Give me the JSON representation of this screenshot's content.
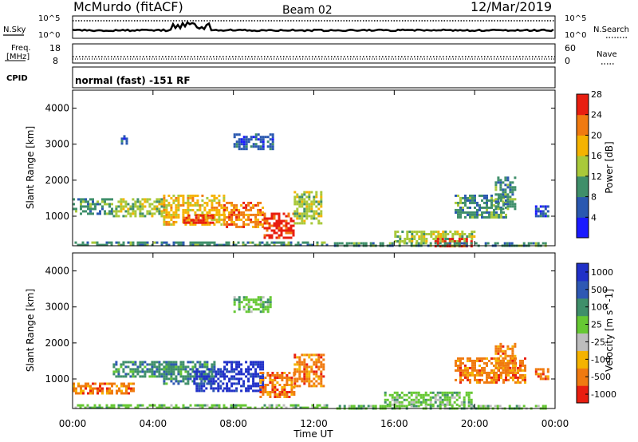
{
  "header": {
    "station": "McMurdo (fitACF)",
    "beam": "Beam 02",
    "date": "12/Mar/2019"
  },
  "top_panels": {
    "nsky_label": "N.Sky",
    "nsearch_label": "N.Search",
    "noise_ticks_left": [
      "10^5",
      "10^0"
    ],
    "noise_ticks_right": [
      "10^5",
      "10^0"
    ],
    "freq_label_line1": "Freq.",
    "freq_label_line2": "[MHz]",
    "freq_ticks": [
      "18",
      "8"
    ],
    "nave_label": "Nave",
    "nave_ticks": [
      "60",
      "0"
    ],
    "cpid_label": "CPID",
    "cpid_text": "normal (fast) -151 RF"
  },
  "chart_data": [
    {
      "type": "heatmap",
      "name": "power",
      "ylabel": "Slant Range [km]",
      "xlabel": "",
      "yticks": [
        "1000",
        "2000",
        "3000",
        "4000"
      ],
      "ylim": [
        180,
        4500
      ],
      "colorbar_label": "Power [dB]",
      "colorbar_ticks": [
        "4",
        "8",
        "12",
        "16",
        "20",
        "24",
        "28"
      ],
      "colors": [
        "#1a1aff",
        "#2a58b0",
        "#3f8f6a",
        "#a9c93a",
        "#f5b300",
        "#f07a10",
        "#e81e10"
      ],
      "regions": [
        {
          "t0": 0.1,
          "t1": 12.6,
          "r0": 180,
          "r1": 300,
          "level": 2
        },
        {
          "t0": 0.0,
          "t1": 2.0,
          "r0": 1100,
          "r1": 1500,
          "level": 2
        },
        {
          "t0": 2.0,
          "t1": 4.5,
          "r0": 1000,
          "r1": 1500,
          "level": 3
        },
        {
          "t0": 4.5,
          "t1": 7.5,
          "r0": 800,
          "r1": 1600,
          "level": 4
        },
        {
          "t0": 5.5,
          "t1": 7.0,
          "r0": 800,
          "r1": 1050,
          "level": 6
        },
        {
          "t0": 7.5,
          "t1": 9.5,
          "r0": 700,
          "r1": 1400,
          "level": 5
        },
        {
          "t0": 9.5,
          "t1": 11.0,
          "r0": 400,
          "r1": 1100,
          "level": 6
        },
        {
          "t0": 11.0,
          "t1": 12.4,
          "r0": 800,
          "r1": 1700,
          "level": 3
        },
        {
          "t0": 8.0,
          "t1": 10.0,
          "r0": 2900,
          "r1": 3300,
          "level": 1
        },
        {
          "t0": 2.4,
          "t1": 2.7,
          "r0": 3050,
          "r1": 3250,
          "level": 1
        },
        {
          "t0": 16.0,
          "t1": 20.0,
          "r0": 300,
          "r1": 600,
          "level": 3
        },
        {
          "t0": 18.0,
          "t1": 19.8,
          "r0": 200,
          "r1": 400,
          "level": 6
        },
        {
          "t0": 19.0,
          "t1": 21.5,
          "r0": 1000,
          "r1": 1600,
          "level": 2
        },
        {
          "t0": 21.0,
          "t1": 22.0,
          "r0": 1200,
          "r1": 2100,
          "level": 2
        },
        {
          "t0": 23.0,
          "t1": 23.7,
          "r0": 1000,
          "r1": 1300,
          "level": 1
        },
        {
          "t0": 13.0,
          "t1": 23.5,
          "r0": 180,
          "r1": 280,
          "level": 2
        }
      ]
    },
    {
      "type": "heatmap",
      "name": "velocity",
      "ylabel": "Slant Range [km]",
      "xlabel": "Time UT",
      "yticks": [
        "1000",
        "2000",
        "3000",
        "4000"
      ],
      "ylim": [
        180,
        4500
      ],
      "colorbar_label": "Velocity [m s^-1]",
      "colorbar_ticks": [
        "1000",
        "500",
        "100",
        "25",
        "-25",
        "-100",
        "-500",
        "-1000"
      ],
      "colors": [
        "#2030c8",
        "#2e58b4",
        "#3f8f6a",
        "#66c833",
        "#bdbdbd",
        "#f5b300",
        "#f07a10",
        "#e81e10"
      ],
      "regions": [
        {
          "t0": 0.0,
          "t1": 3.0,
          "r0": 600,
          "r1": 900,
          "level": 6
        },
        {
          "t0": 2.0,
          "t1": 5.0,
          "r0": 1100,
          "r1": 1500,
          "level": 2
        },
        {
          "t0": 4.5,
          "t1": 7.0,
          "r0": 900,
          "r1": 1500,
          "level": 2
        },
        {
          "t0": 6.0,
          "t1": 7.5,
          "r0": 700,
          "r1": 1300,
          "level": 0
        },
        {
          "t0": 7.5,
          "t1": 9.5,
          "r0": 700,
          "r1": 1500,
          "level": 0
        },
        {
          "t0": 9.3,
          "t1": 11.0,
          "r0": 500,
          "r1": 1200,
          "level": 6
        },
        {
          "t0": 11.0,
          "t1": 12.5,
          "r0": 800,
          "r1": 1700,
          "level": 6
        },
        {
          "t0": 8.0,
          "t1": 9.8,
          "r0": 2900,
          "r1": 3300,
          "level": 3
        },
        {
          "t0": 0.1,
          "t1": 12.6,
          "r0": 180,
          "r1": 300,
          "level": 3
        },
        {
          "t0": 15.5,
          "t1": 19.8,
          "r0": 300,
          "r1": 650,
          "level": 3
        },
        {
          "t0": 19.0,
          "t1": 22.5,
          "r0": 900,
          "r1": 1600,
          "level": 6
        },
        {
          "t0": 21.0,
          "t1": 22.0,
          "r0": 1200,
          "r1": 2000,
          "level": 6
        },
        {
          "t0": 23.0,
          "t1": 23.7,
          "r0": 1000,
          "r1": 1300,
          "level": 6
        },
        {
          "t0": 13.0,
          "t1": 23.5,
          "r0": 180,
          "r1": 280,
          "level": 3
        }
      ]
    }
  ],
  "time_axis": {
    "label": "Time UT",
    "ticks": [
      "00:00",
      "04:00",
      "08:00",
      "12:00",
      "16:00",
      "20:00",
      "00:00"
    ],
    "range_hours": [
      0,
      24
    ]
  }
}
